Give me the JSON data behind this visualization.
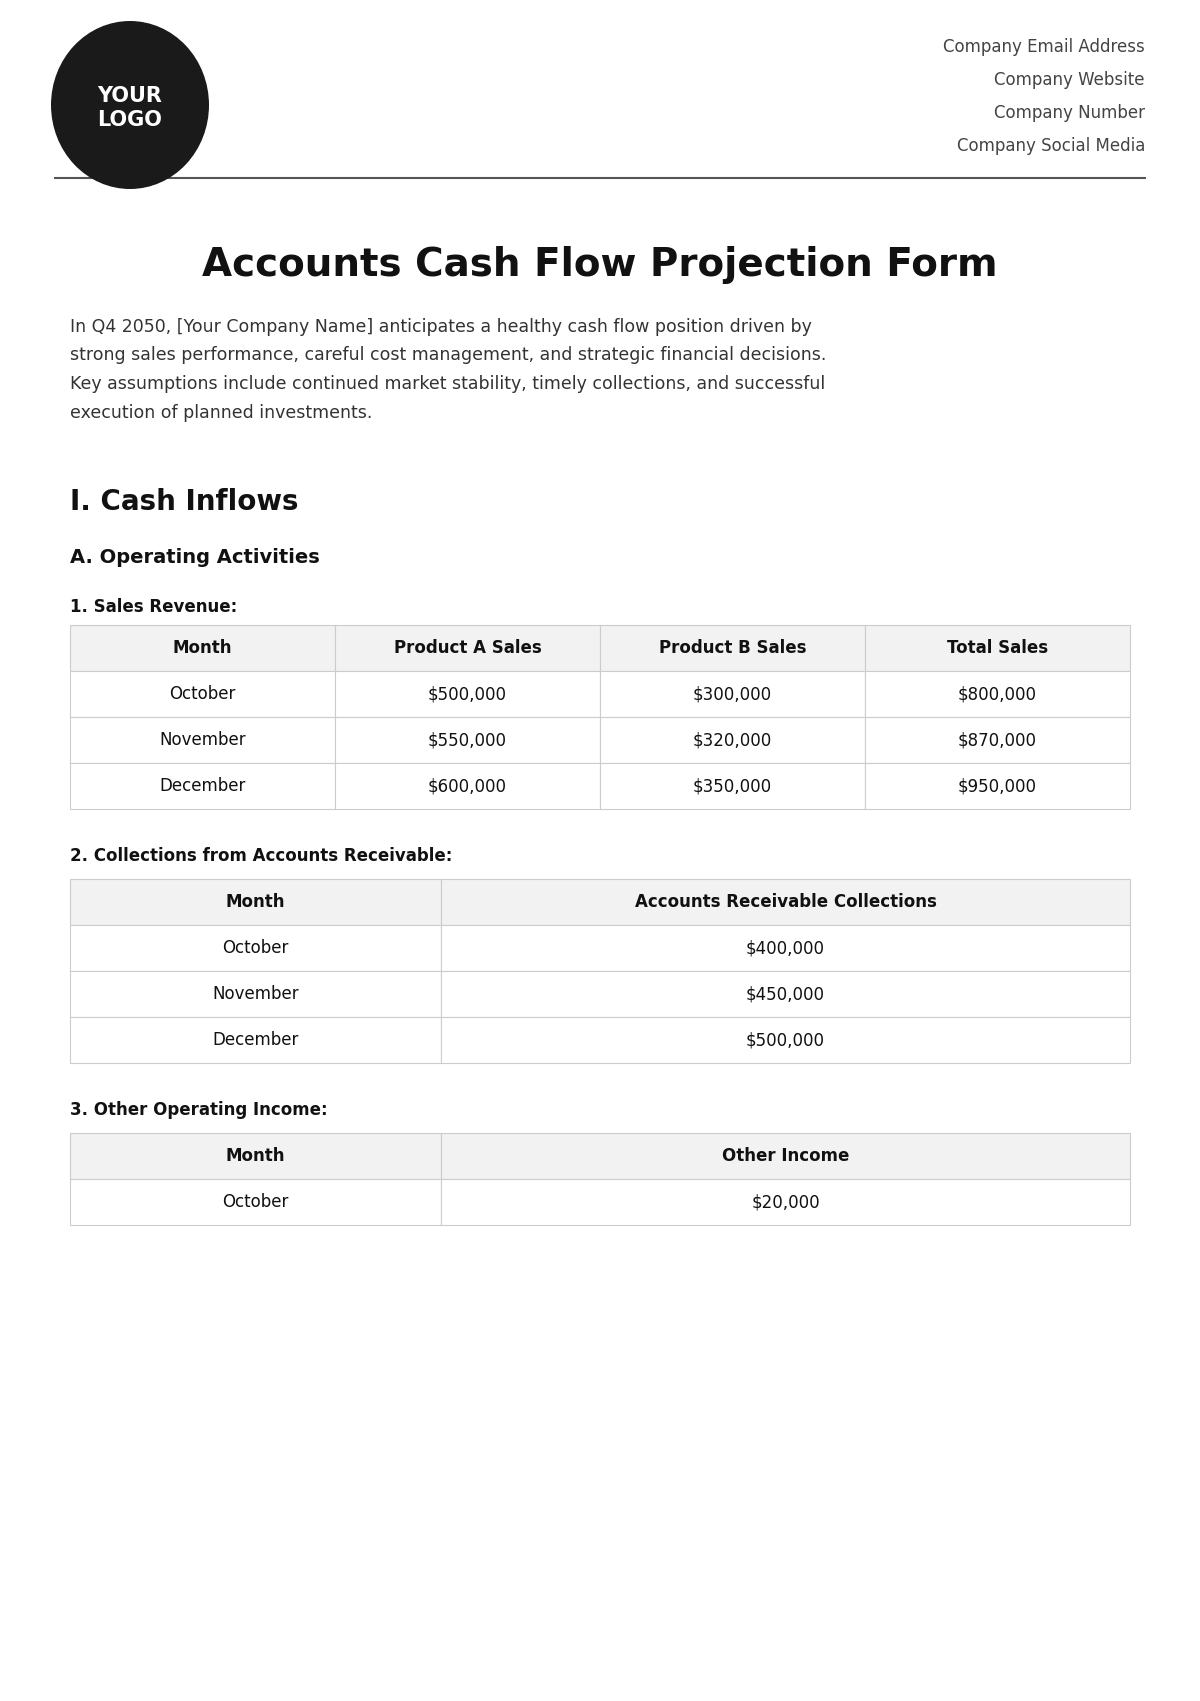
{
  "bg_color": "#ffffff",
  "header": {
    "logo_text": "YOUR\nLOGO",
    "logo_bg": "#1a1a1a",
    "logo_text_color": "#ffffff",
    "company_info": [
      "Company Email Address",
      "Company Website",
      "Company Number",
      "Company Social Media"
    ],
    "company_info_color": "#444444"
  },
  "divider_color": "#555555",
  "title": "Accounts Cash Flow Projection Form",
  "title_fontsize": 28,
  "title_color": "#111111",
  "intro_text": "In Q4 2050, [Your Company Name] anticipates a healthy cash flow position driven by\nstrong sales performance, careful cost management, and strategic financial decisions.\nKey assumptions include continued market stability, timely collections, and successful\nexecution of planned investments.",
  "intro_fontsize": 12.5,
  "intro_color": "#333333",
  "section1_title": "I. Cash Inflows",
  "section1_fontsize": 20,
  "section1_color": "#111111",
  "subsection_a": "A. Operating Activities",
  "subsection_a_fontsize": 14,
  "subsection_a_color": "#111111",
  "table1_label": "1. Sales Revenue:",
  "table1_label_fontsize": 12,
  "table1_label_color": "#111111",
  "table1_headers": [
    "Month",
    "Product A Sales",
    "Product B Sales",
    "Total Sales"
  ],
  "table1_header_color": "#f2f2f2",
  "table1_header_fontsize": 12,
  "table1_data": [
    [
      "October",
      "$500,000",
      "$300,000",
      "$800,000"
    ],
    [
      "November",
      "$550,000",
      "$320,000",
      "$870,000"
    ],
    [
      "December",
      "$600,000",
      "$350,000",
      "$950,000"
    ]
  ],
  "table1_data_fontsize": 12,
  "table1_data_color": "#111111",
  "table1_border_color": "#cccccc",
  "table2_label": "2. Collections from Accounts Receivable:",
  "table2_label_fontsize": 12,
  "table2_label_color": "#111111",
  "table2_headers": [
    "Month",
    "Accounts Receivable Collections"
  ],
  "table2_header_color": "#f2f2f2",
  "table2_header_fontsize": 12,
  "table2_data": [
    [
      "October",
      "$400,000"
    ],
    [
      "November",
      "$450,000"
    ],
    [
      "December",
      "$500,000"
    ]
  ],
  "table2_data_fontsize": 12,
  "table2_data_color": "#111111",
  "table2_border_color": "#cccccc",
  "table3_label": "3. Other Operating Income:",
  "table3_label_fontsize": 12,
  "table3_label_color": "#111111",
  "table3_headers": [
    "Month",
    "Other Income"
  ],
  "table3_header_color": "#f2f2f2",
  "table3_header_fontsize": 12,
  "table3_partial_data": [
    [
      "October",
      "$20,000"
    ]
  ],
  "table3_data_fontsize": 12,
  "table3_data_color": "#111111",
  "table3_border_color": "#cccccc"
}
